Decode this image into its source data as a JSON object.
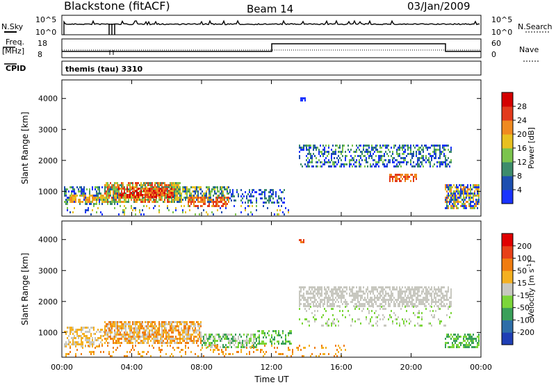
{
  "header": {
    "site": "Blackstone (fitACF)",
    "beam": "Beam 14",
    "date": "03/Jan/2009"
  },
  "top_panels": {
    "nsky_label": "N.Sky",
    "nsky_ticks": [
      "10^5",
      "10^0"
    ],
    "nsearch_label": "N.Search",
    "nsearch_ticks": [
      "10^5",
      "10^0"
    ],
    "freq_label": "Freq.",
    "freq_unit": "[MHz]",
    "freq_ticks": [
      "18",
      "8"
    ],
    "nave_label": "Nave",
    "nave_ticks": [
      "60",
      "0"
    ],
    "cpid_label": "CPID",
    "cpid_text": "themis (tau) 3310"
  },
  "chart_data": [
    {
      "type": "heatmap",
      "name": "power-panel",
      "ylabel": "Slant Range [km]",
      "ylim": [
        200,
        4600
      ],
      "yticks": [
        "1000",
        "2000",
        "3000",
        "4000"
      ],
      "ytick_values": [
        1000,
        2000,
        3000,
        4000
      ],
      "xlim": [
        0,
        24
      ],
      "colorbar_label": "Power [dB]",
      "colorbar_ticks": [
        "4",
        "8",
        "12",
        "16",
        "20",
        "24",
        "28"
      ],
      "colorbar_colors": [
        "#1a33ff",
        "#1d4fb0",
        "#3d8c6b",
        "#7bc44d",
        "#e8c020",
        "#f08a20",
        "#e23a1c",
        "#d40000"
      ],
      "colorbar_ticks_are": "boundaries"
    },
    {
      "type": "heatmap",
      "name": "velocity-panel",
      "ylabel": "Slant Range [km]",
      "ylim": [
        200,
        4600
      ],
      "yticks": [
        "1000",
        "2000",
        "3000",
        "4000"
      ],
      "ytick_values": [
        1000,
        2000,
        3000,
        4000
      ],
      "xlim": [
        0,
        24
      ],
      "xticks": [
        "00:00",
        "04:00",
        "08:00",
        "12:00",
        "16:00",
        "20:00",
        "00:00"
      ],
      "xtick_values": [
        0,
        4,
        8,
        12,
        16,
        20,
        24
      ],
      "xlabel": "Time UT",
      "colorbar_label": "Velocity [m s",
      "colorbar_label_sup": "-1",
      "colorbar_label_end": "]",
      "colorbar_ticks": [
        "200",
        "100",
        "50",
        "15",
        "-15",
        "-50",
        "-100",
        "-200"
      ],
      "colorbar_colors": [
        "#1f3fb5",
        "#2e6ea8",
        "#3aa05a",
        "#7cd63a",
        "#c8c8c0",
        "#f4b020",
        "#f07c10",
        "#e84018",
        "#e00000"
      ],
      "colorbar_ticks_are": "boundaries"
    }
  ]
}
